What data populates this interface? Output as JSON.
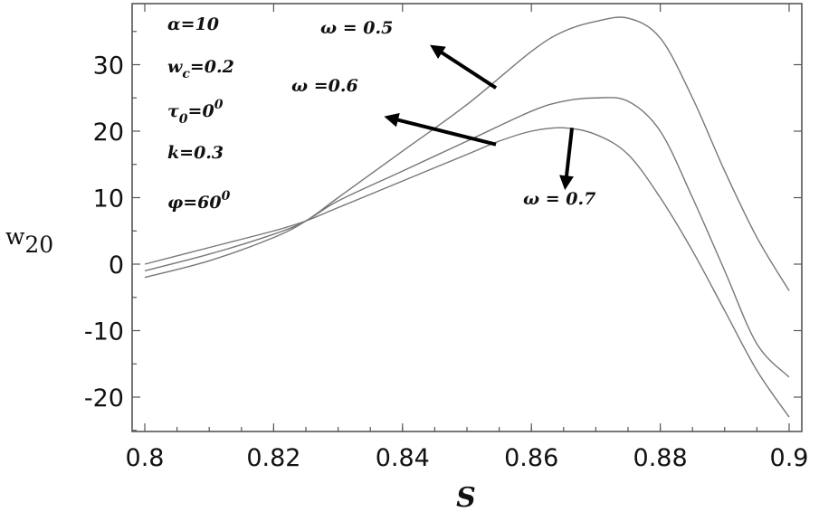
{
  "chart_data": {
    "type": "line",
    "xlabel": "S",
    "ylabel": {
      "base": "w",
      "sub": "20"
    },
    "xlim": [
      0.8,
      0.9
    ],
    "ylim": [
      -25,
      38
    ],
    "x_ticks": [
      "0.8",
      "0.82",
      "0.84",
      "0.86",
      "0.88",
      "0.9"
    ],
    "y_ticks": [
      "-20",
      "-10",
      "0",
      "10",
      "20",
      "30"
    ],
    "series": [
      {
        "name": "ω = 0.5",
        "x": [
          0.8,
          0.81,
          0.82,
          0.825,
          0.83,
          0.84,
          0.85,
          0.86,
          0.865,
          0.87,
          0.875,
          0.88,
          0.885,
          0.89,
          0.895,
          0.9
        ],
        "y": [
          -2,
          0.5,
          4,
          6.5,
          10,
          17,
          24,
          32,
          35,
          36.5,
          37,
          34,
          25,
          14,
          4,
          -4
        ]
      },
      {
        "name": "ω = 0.6",
        "x": [
          0.8,
          0.81,
          0.82,
          0.825,
          0.83,
          0.84,
          0.85,
          0.86,
          0.865,
          0.87,
          0.875,
          0.88,
          0.885,
          0.89,
          0.895,
          0.9
        ],
        "y": [
          -1,
          1.5,
          4.5,
          6.5,
          9.5,
          14,
          18.5,
          23,
          24.5,
          25,
          24.5,
          20,
          10,
          -1,
          -12,
          -17
        ]
      },
      {
        "name": "ω = 0.7",
        "x": [
          0.8,
          0.81,
          0.82,
          0.825,
          0.83,
          0.84,
          0.85,
          0.855,
          0.86,
          0.865,
          0.87,
          0.875,
          0.88,
          0.885,
          0.89,
          0.895,
          0.9
        ],
        "y": [
          0,
          2.5,
          5,
          6.5,
          8.5,
          12.5,
          16.5,
          18.5,
          20,
          20.5,
          19.5,
          16.5,
          10,
          2,
          -7,
          -16,
          -23
        ]
      }
    ],
    "grid": false,
    "legend": "none"
  },
  "parameters": {
    "alpha": {
      "sym": "α",
      "rest": "=10"
    },
    "wc": {
      "sym": "w",
      "sub": "c",
      "rest": "=0.2"
    },
    "tau": {
      "sym": "τ",
      "sub": "0",
      "rest": "=0",
      "sup": "0"
    },
    "k": {
      "sym": "k",
      "rest": "=0.3"
    },
    "phi": {
      "sym": "φ",
      "rest": "=60",
      "sup": "0"
    }
  },
  "annotations": [
    {
      "text": "ω = 0.5",
      "arrow_from": [
        0.8545,
        26.5
      ],
      "arrow_to": [
        0.845,
        32.5
      ]
    },
    {
      "text": "ω =0.6",
      "arrow_from": [
        0.8545,
        18
      ],
      "arrow_to": [
        0.838,
        22
      ]
    },
    {
      "text": "ω = 0.7",
      "arrow_from": [
        0.8663,
        20.5
      ],
      "arrow_to": [
        0.8653,
        12
      ]
    }
  ]
}
